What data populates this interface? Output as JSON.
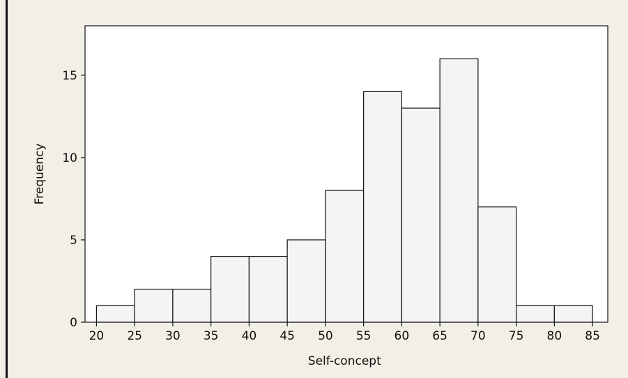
{
  "chart_data": {
    "type": "bar",
    "title": "",
    "xlabel": "Self-concept",
    "ylabel": "Frequency",
    "bin_edges": [
      20,
      25,
      30,
      35,
      40,
      45,
      50,
      55,
      60,
      65,
      70,
      75,
      80,
      85
    ],
    "values": [
      1,
      2,
      2,
      4,
      4,
      5,
      8,
      14,
      13,
      16,
      7,
      1,
      1
    ],
    "xlim": [
      18.5,
      87
    ],
    "ylim": [
      0,
      18
    ],
    "x_ticks": [
      20,
      25,
      30,
      35,
      40,
      45,
      50,
      55,
      60,
      65,
      70,
      75,
      80,
      85
    ],
    "y_ticks": [
      0,
      5,
      10,
      15
    ],
    "grid": false,
    "legend": "none",
    "colors": {
      "page_background": "#f2efe6",
      "plot_background": "#ffffff",
      "bar_fill": "#f4f4f4",
      "bar_stroke": "#111111"
    }
  }
}
